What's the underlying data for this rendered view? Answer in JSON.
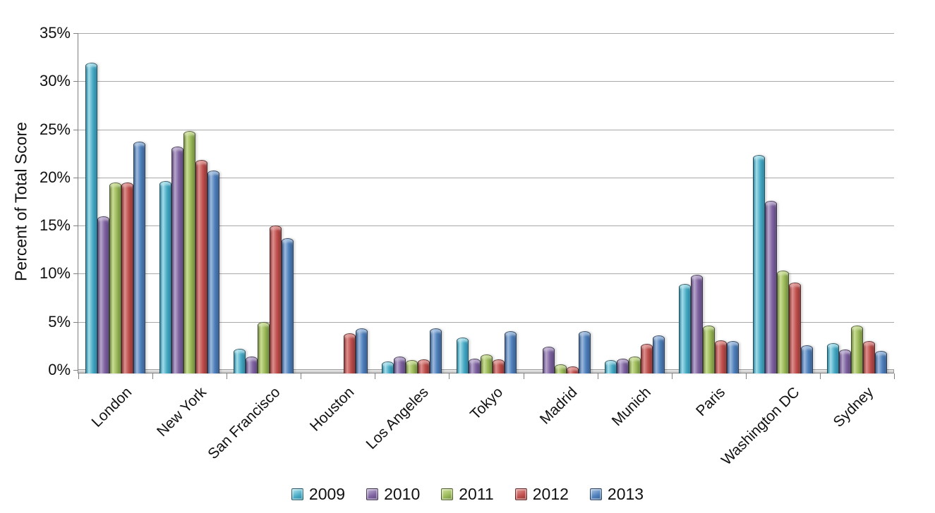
{
  "chart_data": {
    "type": "bar",
    "title": "",
    "ylabel": "Percent of Total Score",
    "xlabel": "",
    "ylim": [
      0,
      35
    ],
    "ytick_step": 5,
    "yticks": [
      "0%",
      "5%",
      "10%",
      "15%",
      "20%",
      "25%",
      "30%",
      "35%"
    ],
    "grid": true,
    "legend_position": "bottom",
    "categories": [
      "London",
      "New York",
      "San Francisco",
      "Houston",
      "Los Angeles",
      "Tokyo",
      "Madrid",
      "Munich",
      "Paris",
      "Washington DC",
      "Sydney"
    ],
    "series": [
      {
        "name": "2009",
        "color": "#4BACC6",
        "color_light": "#A5DEEA",
        "color_dark": "#26839F",
        "values": [
          31.9,
          19.6,
          2.2,
          0,
          0.9,
          3.4,
          0,
          1.0,
          8.9,
          22.3,
          2.8
        ]
      },
      {
        "name": "2010",
        "color": "#8064A2",
        "color_light": "#B8A8CC",
        "color_dark": "#5B4579",
        "values": [
          16.0,
          23.2,
          1.4,
          0,
          1.4,
          1.2,
          2.4,
          1.2,
          9.9,
          17.6,
          2.1
        ]
      },
      {
        "name": "2011",
        "color": "#9BBB59",
        "color_light": "#CBDD96",
        "color_dark": "#6F883C",
        "values": [
          19.5,
          24.8,
          5.0,
          0,
          1.0,
          1.6,
          0.6,
          1.4,
          4.6,
          10.3,
          4.6
        ]
      },
      {
        "name": "2012",
        "color": "#C0504D",
        "color_light": "#DD918F",
        "color_dark": "#8B3432",
        "values": [
          19.5,
          21.8,
          15.0,
          3.8,
          1.1,
          1.1,
          0.4,
          2.7,
          3.1,
          9.1,
          3.0
        ]
      },
      {
        "name": "2013",
        "color": "#4F81BD",
        "color_light": "#9FBBDD",
        "color_dark": "#365D90",
        "values": [
          23.7,
          20.7,
          13.7,
          4.3,
          4.3,
          4.0,
          4.0,
          3.6,
          3.0,
          2.6,
          2.0
        ]
      }
    ]
  }
}
